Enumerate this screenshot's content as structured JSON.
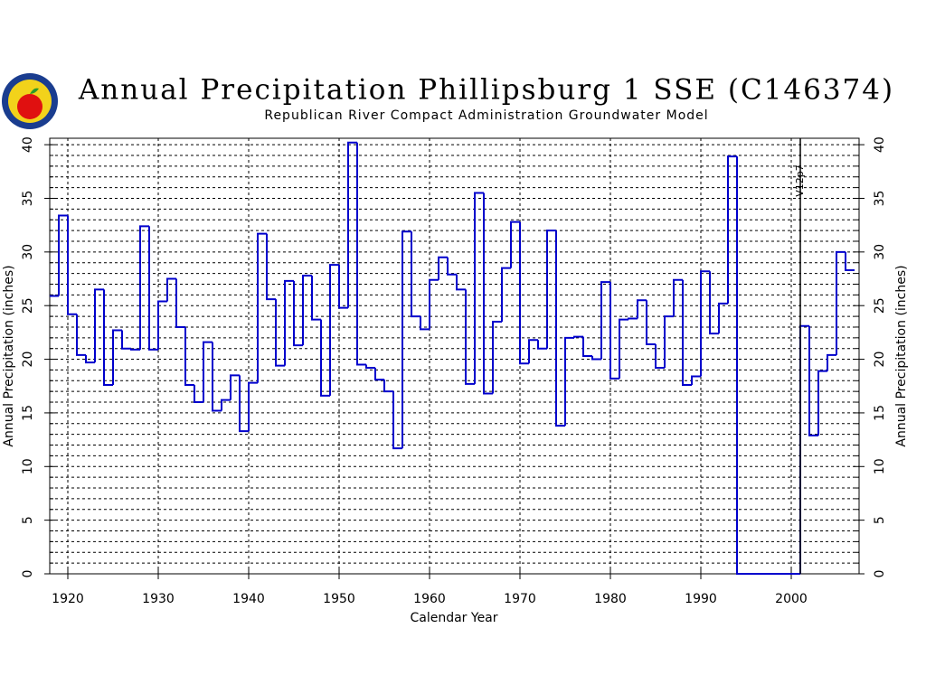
{
  "chart_data": {
    "type": "step",
    "title": "Annual Precipitation Phillipsburg 1 SSE (C146374)",
    "subtitle": "Republican River Compact Administration Groundwater Model",
    "x_label": "Calendar Year",
    "y_label": "Annual Precipitation (inches)",
    "x": [
      1918,
      1919,
      1920,
      1921,
      1922,
      1923,
      1924,
      1925,
      1926,
      1927,
      1928,
      1929,
      1930,
      1931,
      1932,
      1933,
      1934,
      1935,
      1936,
      1937,
      1938,
      1939,
      1940,
      1941,
      1942,
      1943,
      1944,
      1945,
      1946,
      1947,
      1948,
      1949,
      1950,
      1951,
      1952,
      1953,
      1954,
      1955,
      1956,
      1957,
      1958,
      1959,
      1960,
      1961,
      1962,
      1963,
      1964,
      1965,
      1966,
      1967,
      1968,
      1969,
      1970,
      1971,
      1972,
      1973,
      1974,
      1975,
      1976,
      1977,
      1978,
      1979,
      1980,
      1981,
      1982,
      1983,
      1984,
      1985,
      1986,
      1987,
      1988,
      1989,
      1990,
      1991,
      1992,
      1993,
      1994,
      1995,
      1996,
      1997,
      1998,
      1999,
      2000,
      2001,
      2002,
      2003,
      2004,
      2005,
      2006
    ],
    "series": [
      {
        "color": "#0000cc",
        "values": [
          25.9,
          33.4,
          24.2,
          20.4,
          19.7,
          26.5,
          17.6,
          22.7,
          21.0,
          20.9,
          32.4,
          20.9,
          25.4,
          27.5,
          23.0,
          17.6,
          16.0,
          21.6,
          15.2,
          16.2,
          18.5,
          13.3,
          17.8,
          31.7,
          25.6,
          19.4,
          27.3,
          21.3,
          27.8,
          23.7,
          16.6,
          28.8,
          24.8,
          40.2,
          19.5,
          19.2,
          18.1,
          17.0,
          11.7,
          31.9,
          24.0,
          22.8,
          27.4,
          29.5,
          27.9,
          26.5,
          17.7,
          35.5,
          16.8,
          23.5,
          28.5,
          32.8,
          19.6,
          21.8,
          21.0,
          32.0,
          13.8,
          22.0,
          22.1,
          20.3,
          20.0,
          27.2,
          18.2,
          23.7,
          23.8,
          25.5,
          21.4,
          19.2,
          24.0,
          27.4,
          17.6,
          18.4,
          28.2,
          22.4,
          25.2,
          38.9,
          0,
          0,
          0,
          0,
          0,
          0,
          0,
          23.1,
          12.9,
          18.9,
          20.4,
          30.0,
          28.3
        ]
      }
    ],
    "xlim": [
      1918,
      2007.5
    ],
    "ylim": [
      0,
      40.6
    ],
    "xticks": [
      1920,
      1930,
      1940,
      1950,
      1960,
      1970,
      1980,
      1990,
      2000
    ],
    "yticks": [
      0,
      5,
      10,
      15,
      20,
      25,
      30,
      35,
      40
    ],
    "y_minor_ticks": [
      1,
      2,
      3,
      4,
      6,
      7,
      8,
      9,
      11,
      12,
      13,
      14,
      16,
      17,
      18,
      19,
      21,
      22,
      23,
      24,
      26,
      27,
      28,
      29,
      31,
      32,
      33,
      34,
      36,
      37,
      38,
      39
    ],
    "grid": true,
    "annotation": {
      "text": "V12p7",
      "x": 2001
    }
  }
}
